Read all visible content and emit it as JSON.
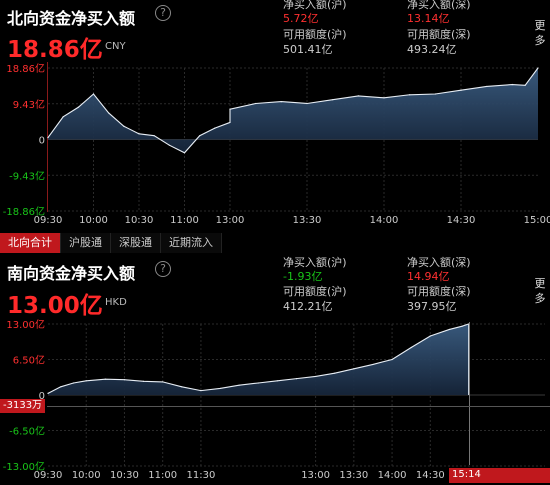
{
  "north": {
    "title": "北向资金净买入额",
    "help_icon": "?",
    "value": "18.86亿",
    "unit": "CNY",
    "stats": {
      "sh_label": "净买入额(沪)",
      "sh_value": "5.72亿",
      "sz_label": "净买入额(深)",
      "sz_value": "13.14亿",
      "sh_quota_label": "可用额度(沪)",
      "sh_quota_value": "501.41亿",
      "sz_quota_label": "可用额度(深)",
      "sz_quota_value": "493.24亿"
    },
    "more": "更多"
  },
  "tabs": [
    "北向合计",
    "沪股通",
    "深股通",
    "近期流入"
  ],
  "south": {
    "title": "南向资金净买入额",
    "help_icon": "?",
    "value": "13.00亿",
    "unit": "HKD",
    "stats": {
      "sh_label": "净买入额(沪)",
      "sh_value": "-1.93亿",
      "sz_label": "净买入额(深)",
      "sz_value": "14.94亿",
      "sh_quota_label": "可用额度(沪)",
      "sh_quota_value": "412.21亿",
      "sz_quota_label": "可用额度(深)",
      "sz_quota_value": "397.95亿"
    },
    "more": "更多",
    "cursor_value": "-3133万",
    "cursor_time": "15:14"
  },
  "colors": {
    "up": "#ff3030",
    "down": "#19c419",
    "accent": "#c0181d",
    "area": "#2f4d6d"
  },
  "chart_data": [
    {
      "type": "area",
      "title": "北向资金净买入额",
      "x_ticks": [
        "09:30",
        "10:00",
        "10:30",
        "11:00",
        "13:00",
        "13:30",
        "14:00",
        "14:30",
        "15:00"
      ],
      "y_ticks": [
        "18.86亿",
        "9.43亿",
        "0",
        "-9.43亿",
        "-18.86亿"
      ],
      "ylim": [
        -18.86,
        18.86
      ],
      "y_unit": "亿",
      "grid": true,
      "x": [
        "09:30",
        "09:40",
        "09:50",
        "10:00",
        "10:10",
        "10:20",
        "10:30",
        "10:40",
        "10:50",
        "11:00",
        "11:10",
        "11:20",
        "11:30",
        "13:00",
        "13:10",
        "13:20",
        "13:30",
        "13:40",
        "13:50",
        "14:00",
        "14:10",
        "14:20",
        "14:30",
        "14:40",
        "14:50",
        "14:55",
        "15:00"
      ],
      "values": [
        0.5,
        6.0,
        8.5,
        12.0,
        7.0,
        3.5,
        1.5,
        1.0,
        -1.5,
        -3.5,
        1.0,
        3.0,
        4.5,
        8.0,
        9.5,
        10.0,
        9.5,
        10.5,
        11.5,
        11.0,
        11.8,
        12.0,
        13.0,
        14.0,
        14.5,
        14.3,
        18.86
      ]
    },
    {
      "type": "area",
      "title": "南向资金净买入额",
      "x_ticks": [
        "09:30",
        "10:00",
        "10:30",
        "11:00",
        "11:30",
        "13:00",
        "13:30",
        "14:00",
        "14:30",
        "15:00"
      ],
      "y_ticks": [
        "13.00亿",
        "6.50亿",
        "0",
        "-6.50亿",
        "-13.00亿"
      ],
      "ylim": [
        -13.0,
        13.0
      ],
      "y_unit": "亿",
      "grid": true,
      "x": [
        "09:30",
        "09:40",
        "09:50",
        "10:00",
        "10:15",
        "10:30",
        "10:45",
        "11:00",
        "11:15",
        "11:30",
        "11:45",
        "12:00",
        "12:15",
        "12:30",
        "12:45",
        "13:00",
        "13:15",
        "13:30",
        "13:45",
        "14:00",
        "14:15",
        "14:30",
        "14:45",
        "14:55",
        "15:00"
      ],
      "values": [
        0.3,
        1.5,
        2.2,
        2.6,
        2.9,
        2.8,
        2.5,
        2.4,
        1.5,
        0.8,
        1.2,
        1.8,
        2.2,
        2.6,
        3.0,
        3.4,
        4.0,
        4.8,
        5.6,
        6.5,
        8.7,
        10.8,
        12.0,
        12.6,
        13.0
      ]
    }
  ]
}
